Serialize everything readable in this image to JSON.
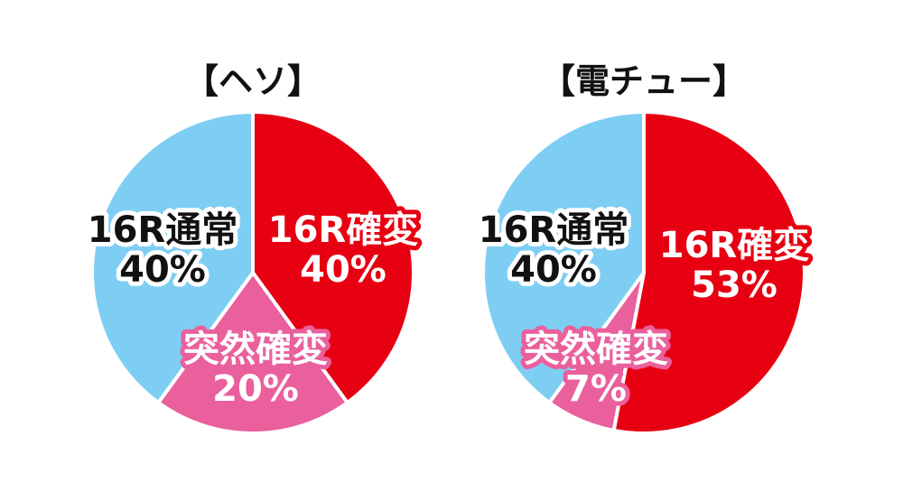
{
  "chart_data": [
    {
      "type": "pie",
      "title": "【ヘソ】",
      "slices": [
        {
          "label": "16R確変",
          "value": 40,
          "value_label": "40%",
          "color": "#e60012",
          "text_color": "#ffffff",
          "outline_color": "#e60012"
        },
        {
          "label": "突然確変",
          "value": 20,
          "value_label": "20%",
          "color": "#e9609c",
          "text_color": "#ffffff",
          "outline_color": "#e9609c"
        },
        {
          "label": "16R通常",
          "value": 40,
          "value_label": "40%",
          "color": "#7ecef4",
          "text_color": "#111111",
          "outline_color": "#ffffff"
        }
      ]
    },
    {
      "type": "pie",
      "title": "【電チュー】",
      "slices": [
        {
          "label": "16R確変",
          "value": 53,
          "value_label": "53%",
          "color": "#e60012",
          "text_color": "#ffffff",
          "outline_color": "#e60012"
        },
        {
          "label": "突然確変",
          "value": 7,
          "value_label": "7%",
          "color": "#e9609c",
          "text_color": "#ffffff",
          "outline_color": "#e9609c"
        },
        {
          "label": "16R通常",
          "value": 40,
          "value_label": "40%",
          "color": "#7ecef4",
          "text_color": "#111111",
          "outline_color": "#ffffff"
        }
      ]
    }
  ]
}
